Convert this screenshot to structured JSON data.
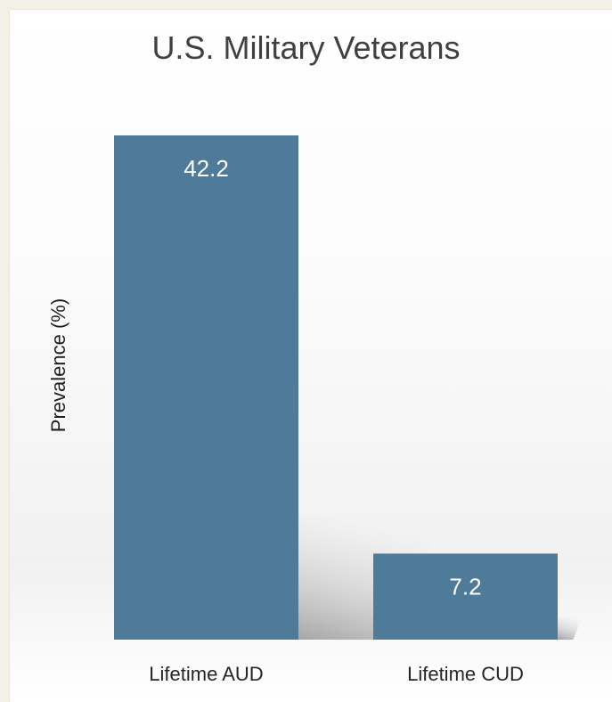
{
  "chart_data": {
    "type": "bar",
    "title": "U.S. Military Veterans",
    "xlabel": "",
    "ylabel": "Prevalence (%)",
    "categories": [
      "Lifetime AUD",
      "Lifetime CUD"
    ],
    "values": [
      42.2,
      7.2
    ],
    "data_labels": [
      "42.2",
      "7.2"
    ],
    "ylim": [
      0,
      42.2
    ],
    "grid": false,
    "legend": "none",
    "bar_color": "#4d7b99"
  }
}
